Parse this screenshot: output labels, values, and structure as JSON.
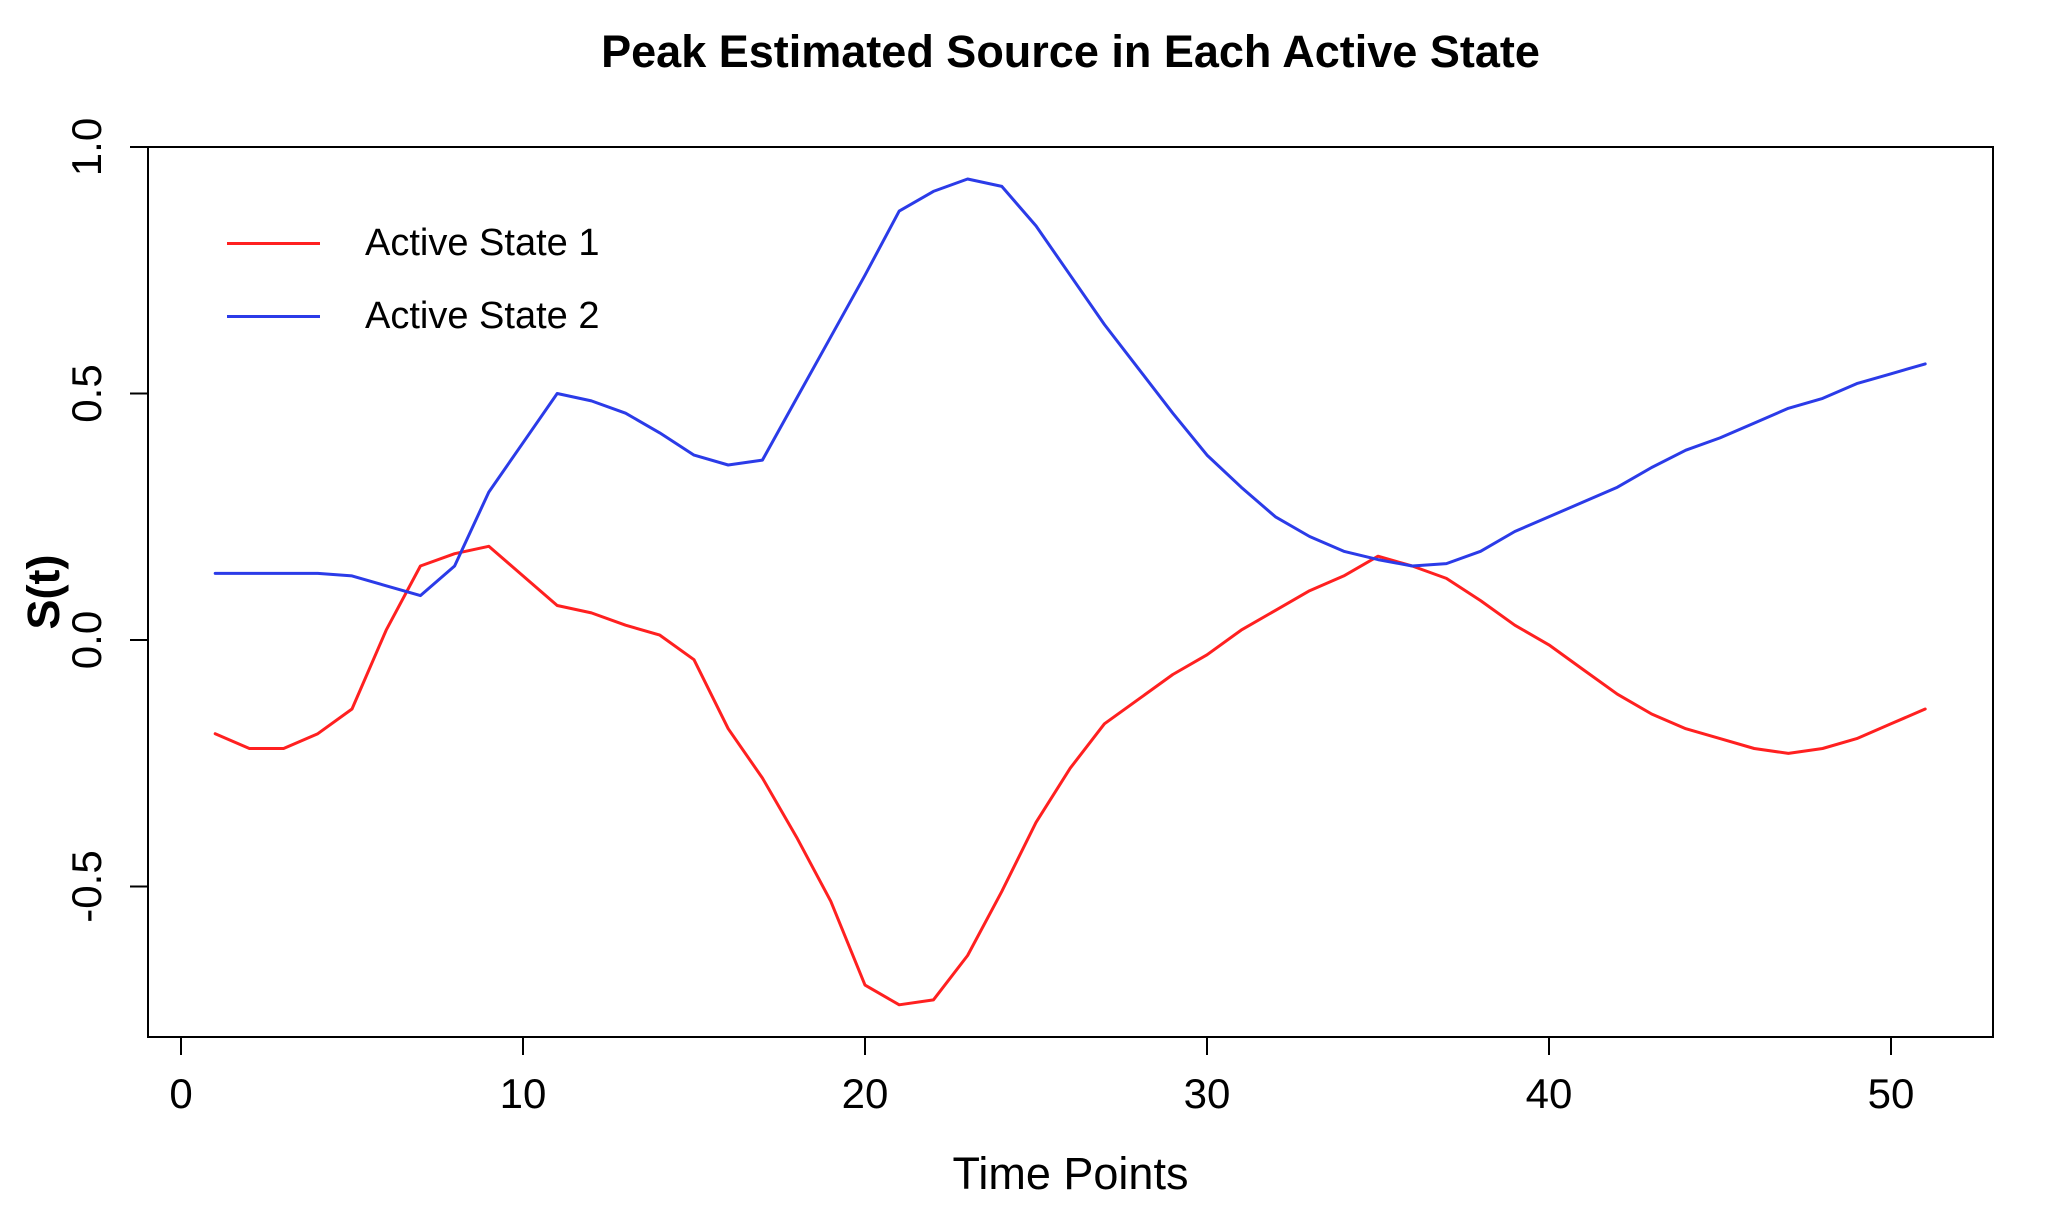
{
  "figure": {
    "background": "#ffffff",
    "axis_color": "#000000"
  },
  "chart_data": {
    "type": "line",
    "title": "Peak Estimated Source in Each Active State",
    "xlabel": "Time Points",
    "ylabel": "S(t)",
    "grid": false,
    "legend_position": "top-left-inside",
    "xlim": [
      -1,
      53
    ],
    "ylim": [
      -0.8,
      1.0
    ],
    "x_ticks": [
      {
        "value": 0,
        "label": "0"
      },
      {
        "value": 10,
        "label": "10"
      },
      {
        "value": 20,
        "label": "20"
      },
      {
        "value": 30,
        "label": "30"
      },
      {
        "value": 40,
        "label": "40"
      },
      {
        "value": 50,
        "label": "50"
      }
    ],
    "y_ticks": [
      {
        "value": -0.5,
        "label": "-0.5"
      },
      {
        "value": 0.0,
        "label": "0.0"
      },
      {
        "value": 0.5,
        "label": "0.5"
      },
      {
        "value": 1.0,
        "label": "1.0"
      }
    ],
    "x": [
      1,
      2,
      3,
      4,
      5,
      6,
      7,
      8,
      9,
      10,
      11,
      12,
      13,
      14,
      15,
      16,
      17,
      18,
      19,
      20,
      21,
      22,
      23,
      24,
      25,
      26,
      27,
      28,
      29,
      30,
      31,
      32,
      33,
      34,
      35,
      36,
      37,
      38,
      39,
      40,
      41,
      42,
      43,
      44,
      45,
      46,
      47,
      48,
      49,
      50,
      51
    ],
    "series": [
      {
        "name": "Active State 1",
        "color": "#ff2020",
        "values": [
          -0.19,
          -0.22,
          -0.22,
          -0.19,
          -0.14,
          0.02,
          0.15,
          0.175,
          0.19,
          0.13,
          0.07,
          0.055,
          0.03,
          0.01,
          -0.04,
          -0.18,
          -0.28,
          -0.4,
          -0.53,
          -0.7,
          -0.74,
          -0.73,
          -0.64,
          -0.51,
          -0.37,
          -0.26,
          -0.17,
          -0.12,
          -0.07,
          -0.03,
          0.02,
          0.06,
          0.1,
          0.13,
          0.17,
          0.15,
          0.125,
          0.08,
          0.03,
          -0.01,
          -0.06,
          -0.11,
          -0.15,
          -0.18,
          -0.2,
          -0.22,
          -0.23,
          -0.22,
          -0.2,
          -0.17,
          -0.14
        ]
      },
      {
        "name": "Active State 2",
        "color": "#2b3be8",
        "values": [
          0.135,
          0.135,
          0.135,
          0.135,
          0.13,
          0.11,
          0.09,
          0.15,
          0.3,
          0.4,
          0.5,
          0.485,
          0.46,
          0.42,
          0.375,
          0.355,
          0.365,
          0.49,
          0.615,
          0.74,
          0.87,
          0.91,
          0.935,
          0.92,
          0.84,
          0.74,
          0.64,
          0.55,
          0.46,
          0.375,
          0.31,
          0.25,
          0.21,
          0.18,
          0.163,
          0.15,
          0.155,
          0.18,
          0.22,
          0.25,
          0.28,
          0.31,
          0.35,
          0.385,
          0.41,
          0.44,
          0.47,
          0.49,
          0.52,
          0.54,
          0.56
        ]
      }
    ]
  }
}
